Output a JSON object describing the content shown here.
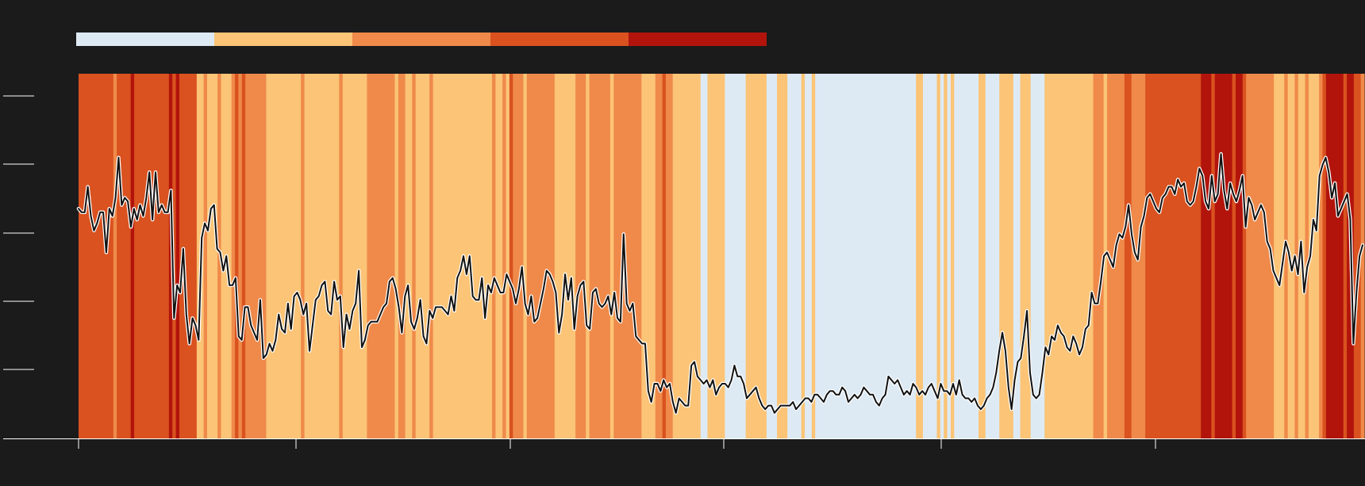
{
  "chart_data": {
    "type": "heatmap",
    "title": "",
    "xlabel": "",
    "ylabel": "",
    "background": "#1b1b1b",
    "line_color": "#111111",
    "line_outline_color": "#ffffff",
    "legend": {
      "placement": "top-left",
      "colors": [
        "#ddeaf4",
        "#fbc476",
        "#ef8a4a",
        "#d9521f",
        "#b2140c"
      ],
      "labels": []
    },
    "x_ticks": 6,
    "y_ticks": 6,
    "tick_labels_x": [],
    "tick_labels_y": [],
    "ylim": [
      0,
      100
    ],
    "xlim": [
      0,
      400
    ],
    "categories_levels": [
      "1",
      "2",
      "3",
      "4",
      "5"
    ],
    "band_pattern": [
      [
        4,
        10
      ],
      [
        3,
        1
      ],
      [
        4,
        4
      ],
      [
        5,
        1
      ],
      [
        4,
        10
      ],
      [
        5,
        1
      ],
      [
        4,
        1
      ],
      [
        5,
        1
      ],
      [
        4,
        5
      ],
      [
        2,
        2
      ],
      [
        3,
        1
      ],
      [
        2,
        3
      ],
      [
        3,
        1
      ],
      [
        2,
        3
      ],
      [
        3,
        1
      ],
      [
        4,
        1
      ],
      [
        3,
        1
      ],
      [
        4,
        1
      ],
      [
        3,
        6
      ],
      [
        2,
        10
      ],
      [
        3,
        1
      ],
      [
        2,
        10
      ],
      [
        3,
        1
      ],
      [
        2,
        7
      ],
      [
        3,
        8
      ],
      [
        2,
        1
      ],
      [
        3,
        2
      ],
      [
        2,
        2
      ],
      [
        3,
        1
      ],
      [
        2,
        4
      ],
      [
        3,
        1
      ],
      [
        2,
        3
      ],
      [
        2,
        14
      ],
      [
        3,
        1
      ],
      [
        2,
        2
      ],
      [
        3,
        1
      ],
      [
        2,
        1
      ],
      [
        4,
        1
      ],
      [
        3,
        3
      ],
      [
        2,
        1
      ],
      [
        3,
        8
      ],
      [
        2,
        6
      ],
      [
        3,
        3
      ],
      [
        2,
        1
      ],
      [
        3,
        6
      ],
      [
        2,
        1
      ],
      [
        3,
        8
      ],
      [
        2,
        4
      ],
      [
        3,
        2
      ],
      [
        4,
        1
      ],
      [
        3,
        2
      ],
      [
        2,
        3
      ],
      [
        2,
        5
      ],
      [
        1,
        2
      ],
      [
        2,
        5
      ],
      [
        1,
        6
      ],
      [
        2,
        6
      ],
      [
        1,
        3
      ],
      [
        2,
        3
      ],
      [
        1,
        4
      ],
      [
        2,
        1
      ],
      [
        1,
        2
      ],
      [
        2,
        1
      ],
      [
        1,
        29
      ],
      [
        2,
        2
      ],
      [
        1,
        4
      ],
      [
        2,
        1
      ],
      [
        1,
        1
      ],
      [
        2,
        1
      ],
      [
        1,
        1
      ],
      [
        2,
        1
      ],
      [
        1,
        7
      ],
      [
        2,
        2
      ],
      [
        1,
        4
      ],
      [
        2,
        4
      ],
      [
        1,
        2
      ],
      [
        2,
        3
      ],
      [
        1,
        4
      ],
      [
        2,
        14
      ],
      [
        3,
        3
      ],
      [
        2,
        1
      ],
      [
        3,
        5
      ],
      [
        4,
        2
      ],
      [
        3,
        4
      ],
      [
        4,
        16
      ],
      [
        5,
        3
      ],
      [
        4,
        1
      ],
      [
        5,
        5
      ],
      [
        4,
        1
      ],
      [
        5,
        2
      ],
      [
        4,
        1
      ],
      [
        3,
        8
      ],
      [
        2,
        3
      ],
      [
        3,
        1
      ],
      [
        2,
        2
      ],
      [
        3,
        1
      ],
      [
        2,
        2
      ],
      [
        3,
        1
      ],
      [
        2,
        3
      ],
      [
        3,
        1
      ],
      [
        4,
        1
      ],
      [
        5,
        5
      ],
      [
        4,
        1
      ],
      [
        5,
        2
      ],
      [
        4,
        2
      ],
      [
        3,
        1
      ]
    ],
    "series": [
      {
        "values": [
          63,
          62,
          62,
          69,
          61,
          57,
          59,
          62,
          62,
          51,
          63,
          61,
          66,
          77,
          64,
          66,
          65,
          58,
          63,
          60,
          64,
          61,
          66,
          73,
          60,
          73,
          62,
          64,
          62,
          62,
          68,
          33,
          42,
          40,
          52,
          34,
          26,
          33,
          31,
          27,
          55,
          59,
          57,
          63,
          64,
          52,
          51,
          46,
          50,
          42,
          42,
          44,
          28,
          27,
          36,
          36,
          31,
          29,
          27,
          38,
          22,
          23,
          26,
          24,
          27,
          34,
          30,
          29,
          37,
          30,
          39,
          40,
          38,
          34,
          37,
          24,
          31,
          38,
          39,
          42,
          43,
          35,
          34,
          43,
          38,
          39,
          25,
          34,
          30,
          35,
          37,
          46,
          25,
          27,
          31,
          32,
          32,
          32,
          34,
          36,
          37,
          43,
          44,
          41,
          36,
          29,
          39,
          42,
          32,
          30,
          33,
          38,
          28,
          26,
          35,
          33,
          36,
          36,
          36,
          35,
          34,
          39,
          35,
          44,
          46,
          50,
          45,
          50,
          39,
          38,
          38,
          44,
          33,
          42,
          40,
          44,
          42,
          40,
          40,
          45,
          43,
          41,
          37,
          41,
          47,
          37,
          34,
          39,
          32,
          33,
          37,
          41,
          46,
          45,
          43,
          40,
          29,
          34,
          45,
          38,
          44,
          30,
          39,
          42,
          43,
          31,
          30,
          40,
          41,
          37,
          36,
          37,
          39,
          34,
          40,
          33,
          32,
          56,
          37,
          35,
          37,
          28,
          27,
          26,
          26,
          13,
          10,
          15,
          15,
          13,
          16,
          14,
          15,
          10,
          7,
          11,
          10,
          9,
          9,
          20,
          21,
          17,
          16,
          15,
          16,
          14,
          16,
          12,
          14,
          15,
          15,
          14,
          16,
          20,
          17,
          17,
          15,
          11,
          12,
          13,
          14,
          11,
          9,
          8,
          9,
          9,
          7,
          8,
          9,
          9,
          9,
          9,
          10,
          8,
          9,
          10,
          11,
          11,
          10,
          12,
          12,
          11,
          10,
          12,
          13,
          13,
          12,
          12,
          14,
          13,
          10,
          11,
          12,
          11,
          12,
          14,
          13,
          12,
          12,
          10,
          9,
          11,
          12,
          17,
          16,
          15,
          16,
          14,
          12,
          13,
          12,
          15,
          14,
          12,
          13,
          12,
          14,
          15,
          13,
          11,
          15,
          13,
          13,
          12,
          15,
          12,
          16,
          12,
          11,
          11,
          10,
          11,
          9,
          8,
          9,
          11,
          12,
          14,
          18,
          24,
          29,
          24,
          14,
          8,
          16,
          21,
          22,
          28,
          35,
          18,
          12,
          11,
          12,
          18,
          25,
          23,
          28,
          27,
          31,
          29,
          28,
          25,
          24,
          28,
          26,
          23,
          25,
          30,
          31,
          40,
          37,
          37,
          43,
          50,
          51,
          49,
          47,
          53,
          56,
          55,
          58,
          64,
          56,
          51,
          49,
          58,
          61,
          66,
          67,
          65,
          63,
          62,
          66,
          67,
          69,
          69,
          67,
          71,
          69,
          70,
          65,
          64,
          65,
          69,
          74,
          72,
          65,
          63,
          72,
          65,
          67,
          78,
          68,
          63,
          70,
          67,
          65,
          68,
          72,
          58,
          66,
          64,
          60,
          62,
          64,
          62,
          54,
          52,
          46,
          44,
          42,
          48,
          54,
          51,
          46,
          50,
          45,
          54,
          40,
          47,
          50,
          60,
          57,
          72,
          75,
          77,
          73,
          66,
          70,
          61,
          63,
          65,
          67,
          60,
          26,
          40,
          50,
          53
        ]
      }
    ]
  }
}
